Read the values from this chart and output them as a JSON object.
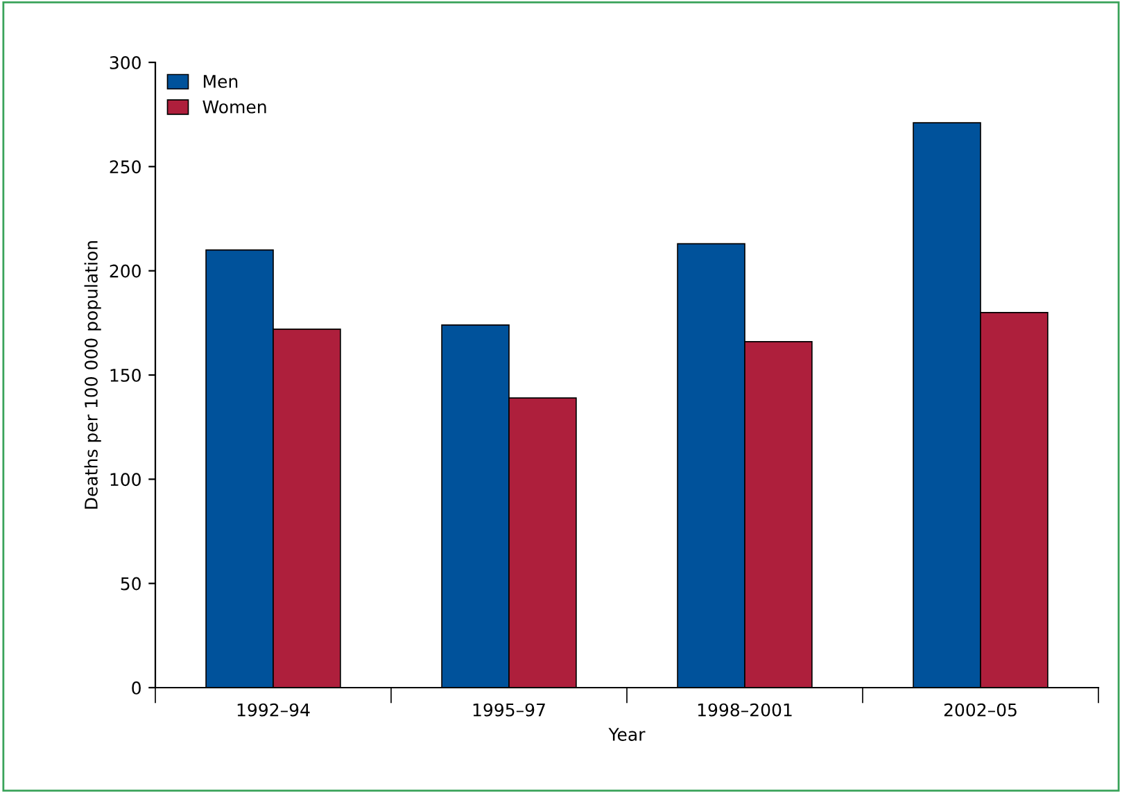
{
  "chart_data": {
    "type": "bar",
    "xlabel": "Year",
    "ylabel": "Deaths per 100 000 population",
    "categories": [
      "1992–94",
      "1995–97",
      "1998–2001",
      "2002–05"
    ],
    "series": [
      {
        "name": "Men",
        "color": "#00529b",
        "values": [
          210,
          174,
          213,
          271
        ]
      },
      {
        "name": "Women",
        "color": "#ae1f3c",
        "values": [
          172,
          139,
          166,
          180
        ]
      }
    ],
    "ylim": [
      0,
      300
    ],
    "yticks": [
      0,
      50,
      100,
      150,
      200,
      250,
      300
    ],
    "grid": false,
    "legend": "top left"
  }
}
